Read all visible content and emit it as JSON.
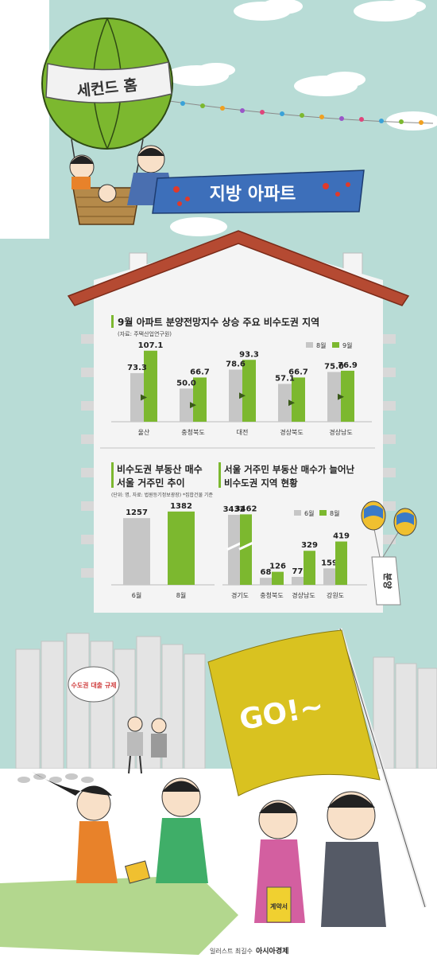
{
  "illustration": {
    "balloon_label": "세컨드 홈",
    "banner_text": "지방 아파트",
    "sign_text": "수도권 대출 규제",
    "flag_text": "GO!~",
    "bunyang_text": "분양",
    "document_text": "계약서",
    "credit_prefix": "일러스트 최길수",
    "credit_brand": "아시아경제"
  },
  "colors": {
    "sky": "#b8dcd6",
    "roof": "#b54a32",
    "green": "#7cb82f",
    "gray": "#c6c6c6",
    "flag": "#d9c220"
  },
  "chart_data": [
    {
      "type": "bar",
      "title": "9월 아파트 분양전망지수 상승 주요 비수도권 지역",
      "source": "(자료: 주택산업연구원)",
      "categories": [
        "울산",
        "충청북도",
        "대전",
        "경상북도",
        "경상남도"
      ],
      "series": [
        {
          "name": "8월",
          "values": [
            73.3,
            50.0,
            78.6,
            57.1,
            75.0
          ],
          "labels": [
            "73.3",
            "50.0",
            "78.6",
            "57.1",
            "75.0"
          ]
        },
        {
          "name": "9월",
          "values": [
            107.1,
            66.7,
            93.3,
            66.7,
            76.9
          ],
          "labels": [
            "107.1",
            "66.7",
            "93.3",
            "66.7",
            "76.9"
          ]
        }
      ],
      "ylim": [
        0,
        120
      ],
      "legend": "top-right"
    },
    {
      "type": "bar",
      "title_lines": [
        "비수도권 부동산 매수",
        "서울 거주민 추이"
      ],
      "source": "(단위: 명, 자료: 법원등기정보광장) *집합건물 기준",
      "categories": [
        "6월",
        "8월"
      ],
      "values": [
        1257,
        1382
      ],
      "labels": [
        "1257",
        "1382"
      ],
      "ylim": [
        0,
        1500
      ]
    },
    {
      "type": "bar",
      "title_lines": [
        "서울 거주민 부동산 매수가 늘어난",
        "비수도권 지역 현황"
      ],
      "categories": [
        "경기도",
        "충청북도",
        "경상남도",
        "강원도"
      ],
      "series": [
        {
          "name": "6월",
          "values": [
            3432,
            68,
            77,
            159
          ],
          "labels": [
            "3432",
            "68",
            "77",
            "159"
          ]
        },
        {
          "name": "8월",
          "values": [
            3462,
            126,
            329,
            419
          ],
          "labels": [
            "3462",
            "126",
            "329",
            "419"
          ]
        }
      ],
      "axis_break": true,
      "legend": "top-right"
    }
  ]
}
